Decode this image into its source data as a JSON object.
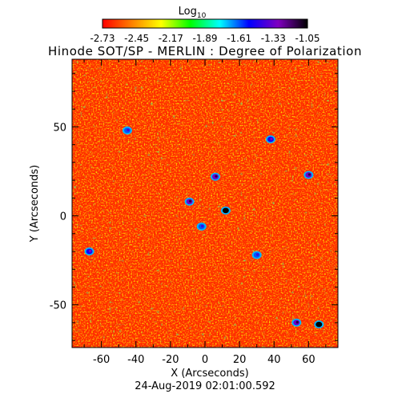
{
  "chart_data": {
    "type": "heatmap",
    "title": "Hinode SOT/SP - MERLIN : Degree of Polarization",
    "subtitle": "24-Aug-2019 02:01:00.592",
    "xlabel": "X (Arcseconds)",
    "ylabel": "Y (Arcseconds)",
    "xlim": [
      -77,
      77
    ],
    "ylim": [
      -74,
      88
    ],
    "xticks": [
      -60,
      -40,
      -20,
      0,
      20,
      40,
      60
    ],
    "yticks": [
      -50,
      0,
      50
    ],
    "colorbar": {
      "label_base": "Log",
      "label_sub": "10",
      "range": [
        -2.73,
        -1.05
      ],
      "ticks": [
        "-2.73",
        "-2.45",
        "-2.17",
        "-1.89",
        "-1.61",
        "-1.33",
        "-1.05"
      ],
      "colormap": [
        "#ff0000",
        "#ff8000",
        "#ffff00",
        "#00ff00",
        "#00ffff",
        "#0000ff",
        "#8000c0",
        "#000000"
      ]
    },
    "background_level": -2.65,
    "features": [
      {
        "x": 12,
        "y": 3,
        "level": -1.05
      },
      {
        "x": -9,
        "y": 8,
        "level": -1.33
      },
      {
        "x": 6,
        "y": 22,
        "level": -1.33
      },
      {
        "x": 60,
        "y": 23,
        "level": -1.33
      },
      {
        "x": 38,
        "y": 43,
        "level": -1.5
      },
      {
        "x": 53,
        "y": -60,
        "level": -1.33
      },
      {
        "x": 66,
        "y": -61,
        "level": -1.05
      },
      {
        "x": -67,
        "y": -20,
        "level": -1.5
      },
      {
        "x": -2,
        "y": -6,
        "level": -1.61
      },
      {
        "x": 30,
        "y": -22,
        "level": -1.61
      },
      {
        "x": -45,
        "y": 48,
        "level": -1.61
      }
    ]
  }
}
